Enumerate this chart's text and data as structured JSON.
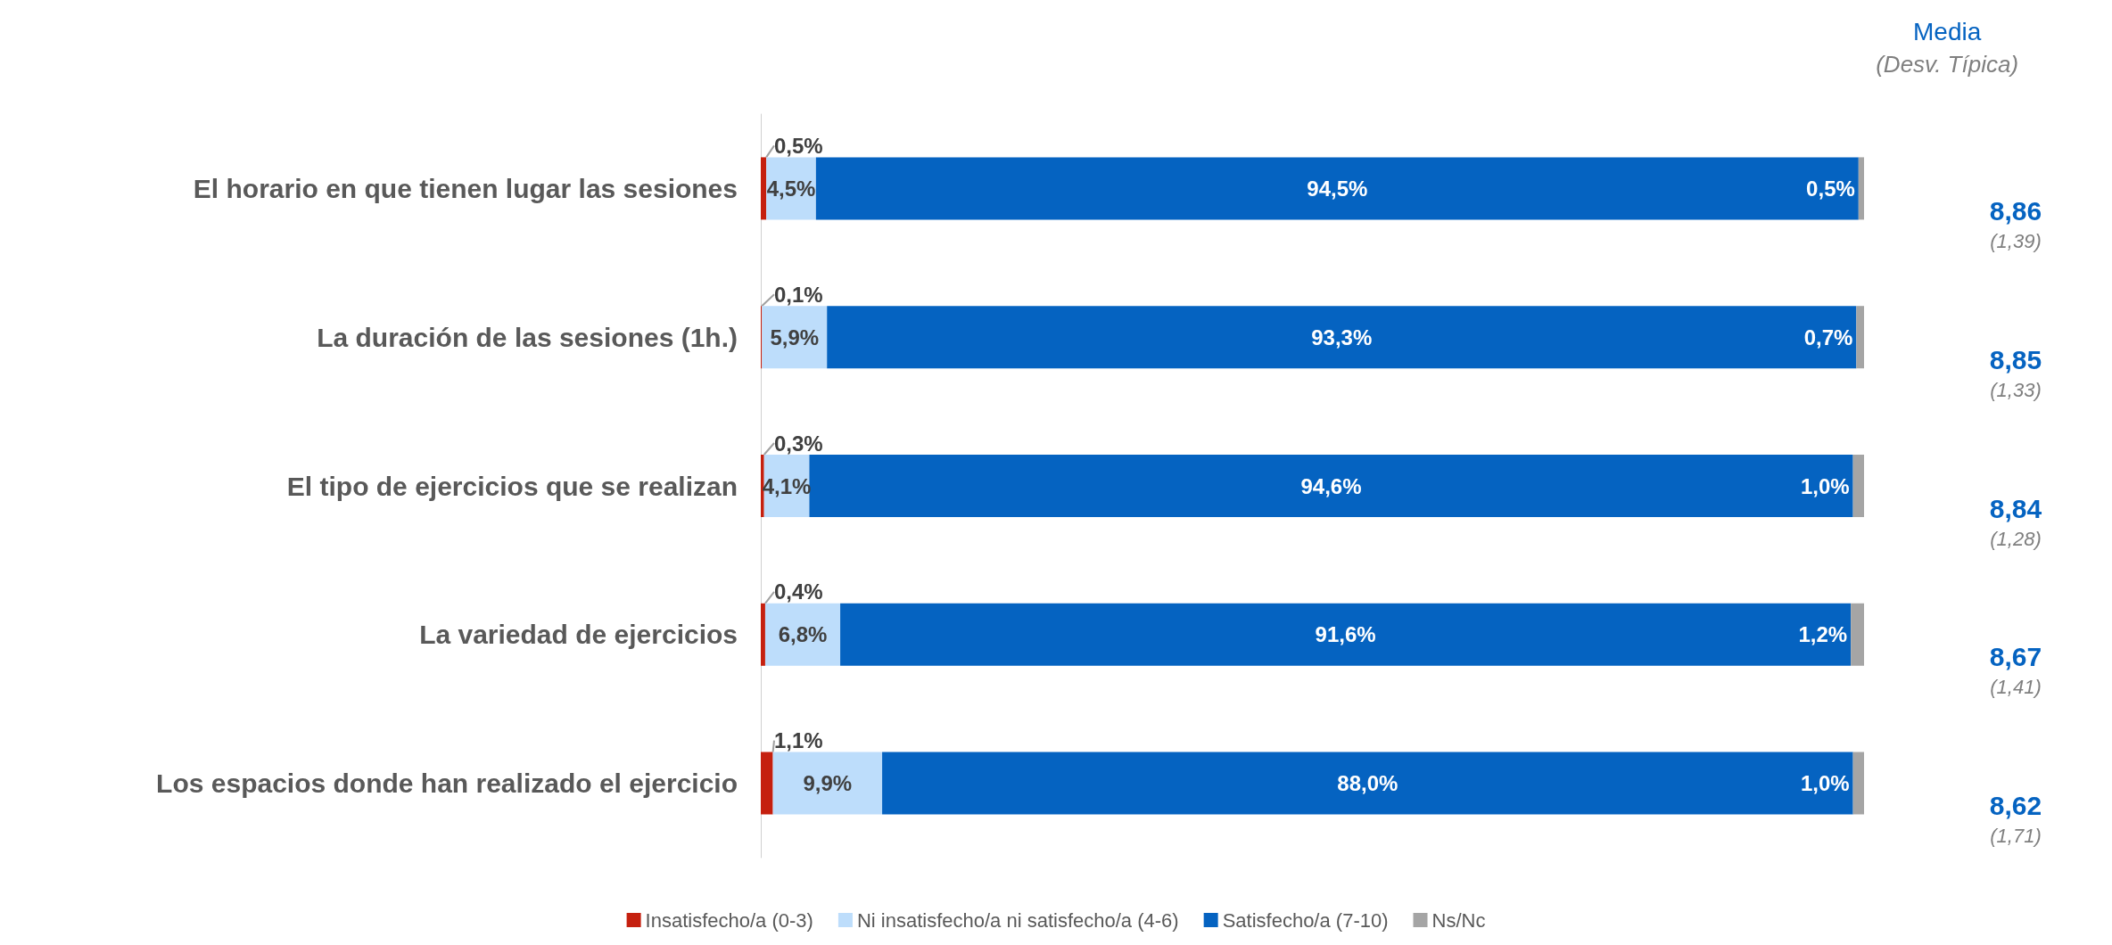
{
  "chart_data": {
    "type": "bar",
    "orientation": "horizontal",
    "stacked": true,
    "title": "Media",
    "subtitle": "(Desv. Típica)",
    "categories": [
      "El horario en que tienen lugar las sesiones",
      "La duración de las sesiones (1h.)",
      "El tipo de ejercicios que se realizan",
      "La variedad de ejercicios",
      "Los espacios donde han realizado el ejercicio"
    ],
    "xlim": [
      0,
      100
    ],
    "legend": "bottom",
    "tick_labels": "y",
    "series": [
      {
        "name": "Insatisfecho/a (0-3)",
        "color": "#c5200f",
        "values": [
          0.5,
          0.1,
          0.3,
          0.4,
          1.1
        ],
        "value_labels": [
          "0,5%",
          "0,1%",
          "0,3%",
          "0,4%",
          "1,1%"
        ]
      },
      {
        "name": "Ni insatisfecho/a ni satisfecho/a (4-6)",
        "color": "#bdddfb",
        "values": [
          4.5,
          5.9,
          4.1,
          6.8,
          9.9
        ],
        "value_labels": [
          "4,5%",
          "5,9%",
          "4,1%",
          "6,8%",
          "9,9%"
        ]
      },
      {
        "name": "Satisfecho/a (7-10)",
        "color": "#0563c1",
        "values": [
          94.5,
          93.3,
          94.6,
          91.6,
          88.0
        ],
        "value_labels": [
          "94,5%",
          "93,3%",
          "94,6%",
          "91,6%",
          "88,0%"
        ]
      },
      {
        "name": "Ns/Nc",
        "color": "#a5a5a5",
        "values": [
          0.5,
          0.7,
          1.0,
          1.2,
          1.0
        ],
        "value_labels": [
          "0,5%",
          "0,7%",
          "1,0%",
          "1,2%",
          "1,0%"
        ]
      }
    ],
    "annotations": [
      "8,86\n(1,39)",
      "8,85\n(1,33)",
      "8,84\n(1,28)",
      "8,67\n(1,41)",
      "8,62\n(1,71)"
    ]
  }
}
